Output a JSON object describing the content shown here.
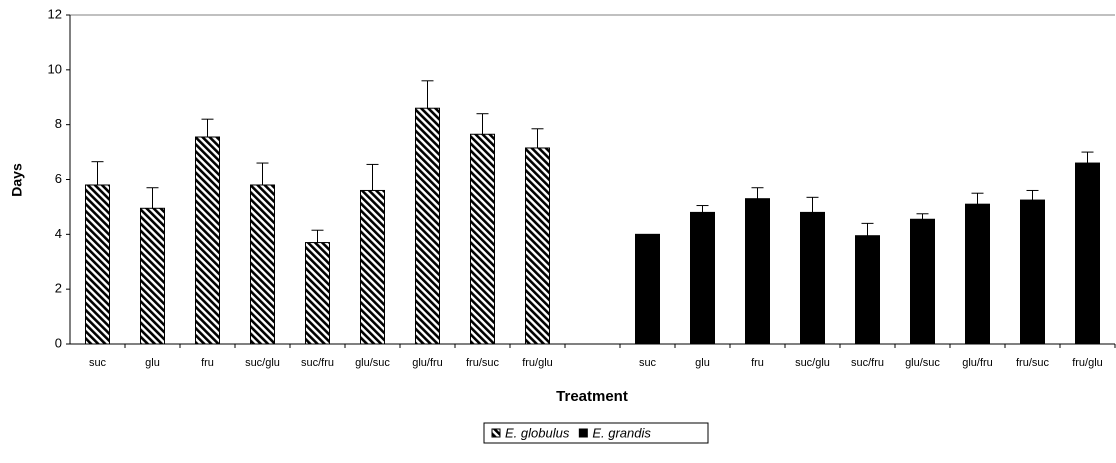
{
  "chart_data": {
    "type": "bar",
    "xlabel": "Treatment",
    "ylabel": "Days",
    "categories": [
      "suc",
      "glu",
      "fru",
      "suc/glu",
      "suc/fru",
      "glu/suc",
      "glu/fru",
      "fru/suc",
      "fru/glu",
      null,
      "suc",
      "glu",
      "fru",
      "suc/glu",
      "suc/fru",
      "glu/suc",
      "glu/fru",
      "fru/suc",
      "fru/glu"
    ],
    "series": [
      {
        "name": "E. globulus",
        "color": "#000000",
        "pattern": "diagonal",
        "values": [
          5.8,
          4.95,
          7.55,
          5.8,
          3.7,
          5.6,
          8.6,
          7.65,
          7.15,
          null,
          null,
          null,
          null,
          null,
          null,
          null,
          null,
          null,
          null
        ],
        "errors": [
          0.85,
          0.75,
          0.65,
          0.8,
          0.45,
          0.95,
          1.0,
          0.75,
          0.7,
          null,
          null,
          null,
          null,
          null,
          null,
          null,
          null,
          null,
          null
        ]
      },
      {
        "name": "E. grandis",
        "color": "#000000",
        "values": [
          null,
          null,
          null,
          null,
          null,
          null,
          null,
          null,
          null,
          null,
          4.0,
          4.8,
          5.3,
          4.8,
          3.95,
          4.55,
          5.1,
          5.25,
          6.6
        ],
        "errors": [
          null,
          null,
          null,
          null,
          null,
          null,
          null,
          null,
          null,
          null,
          null,
          0.25,
          0.4,
          0.55,
          0.45,
          0.2,
          0.4,
          0.35,
          0.4
        ]
      }
    ],
    "ylim": [
      0,
      12
    ],
    "yticks": [
      0,
      2,
      4,
      6,
      8,
      10,
      12
    ],
    "legend": "bottom"
  }
}
